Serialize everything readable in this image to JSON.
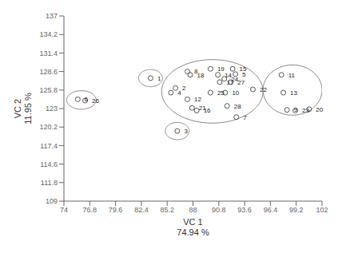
{
  "chart_data": {
    "type": "scatter",
    "x_label": "VC 1\n74.94 %",
    "y_label": "VC 2\n11.95 %",
    "xlim": [
      74,
      102
    ],
    "ylim": [
      109,
      137
    ],
    "xticks": [
      74,
      76.8,
      79.6,
      82.4,
      85.2,
      88,
      90.8,
      93.6,
      96.4,
      99.2,
      102
    ],
    "yticks": [
      109,
      111.8,
      114.6,
      117.4,
      120.2,
      123,
      125.8,
      128.6,
      131.4,
      134.2,
      137
    ],
    "color": "#555555",
    "marker": "circle",
    "grid": false,
    "points": [
      {
        "id": "1",
        "x": 83.4,
        "y": 127.6
      },
      {
        "id": "2",
        "x": 86.1,
        "y": 126.1
      },
      {
        "id": "3",
        "x": 86.3,
        "y": 119.6
      },
      {
        "id": "4",
        "x": 85.6,
        "y": 125.4
      },
      {
        "id": "5",
        "x": 92.6,
        "y": 128.2
      },
      {
        "id": "6",
        "x": 75.5,
        "y": 124.4
      },
      {
        "id": "7",
        "x": 92.7,
        "y": 121.7
      },
      {
        "id": "8",
        "x": 87.4,
        "y": 128.6
      },
      {
        "id": "9",
        "x": 98.2,
        "y": 122.8
      },
      {
        "id": "10",
        "x": 91.5,
        "y": 125.4
      },
      {
        "id": "11",
        "x": 97.6,
        "y": 128.1
      },
      {
        "id": "12",
        "x": 87.4,
        "y": 124.4
      },
      {
        "id": "13",
        "x": 97.8,
        "y": 125.4
      },
      {
        "id": "14",
        "x": 90.7,
        "y": 128.1
      },
      {
        "id": "15",
        "x": 92.3,
        "y": 129.0
      },
      {
        "id": "16",
        "x": 88.4,
        "y": 122.7
      },
      {
        "id": "17",
        "x": 90.9,
        "y": 127.0
      },
      {
        "id": "18",
        "x": 87.7,
        "y": 128.1
      },
      {
        "id": "19",
        "x": 89.9,
        "y": 129.0
      },
      {
        "id": "20",
        "x": 100.6,
        "y": 122.9
      },
      {
        "id": "21",
        "x": 87.9,
        "y": 123.1
      },
      {
        "id": "22",
        "x": 94.5,
        "y": 125.9
      },
      {
        "id": "23",
        "x": 99.1,
        "y": 122.7
      },
      {
        "id": "24",
        "x": 91.4,
        "y": 127.5
      },
      {
        "id": "25",
        "x": 89.9,
        "y": 125.4
      },
      {
        "id": "26",
        "x": 76.3,
        "y": 124.2
      },
      {
        "id": "27",
        "x": 92.1,
        "y": 127.0
      },
      {
        "id": "28",
        "x": 91.7,
        "y": 123.4
      }
    ],
    "ellipses": {
      "color": "#888888",
      "values": [
        {
          "cx": 75.9,
          "cy": 124.3,
          "rx": 1.6,
          "ry": 1.4
        },
        {
          "cx": 83.4,
          "cy": 127.6,
          "rx": 1.3,
          "ry": 1.3
        },
        {
          "cx": 86.3,
          "cy": 119.6,
          "rx": 1.3,
          "ry": 1.3
        },
        {
          "cx": 90.1,
          "cy": 125.6,
          "rx": 5.5,
          "ry": 4.8
        },
        {
          "cx": 98.8,
          "cy": 125.8,
          "rx": 3.2,
          "ry": 3.8
        }
      ]
    }
  }
}
